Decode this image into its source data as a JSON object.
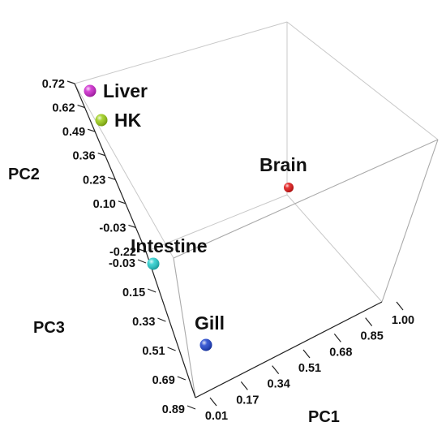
{
  "chart_data": {
    "type": "scatter",
    "projection": "3d",
    "title": "",
    "axes": {
      "x": {
        "label": "PC1",
        "ticks": [
          "0.01",
          "0.17",
          "0.34",
          "0.51",
          "0.68",
          "0.85",
          "1.00"
        ],
        "range": [
          0.01,
          1.0
        ]
      },
      "y": {
        "label": "PC2",
        "ticks": [
          "0.72",
          "0.62",
          "0.49",
          "0.36",
          "0.23",
          "0.10",
          "-0.03",
          "-0.22"
        ],
        "range": [
          -0.22,
          0.72
        ]
      },
      "z": {
        "label": "PC3",
        "ticks": [
          "-0.03",
          "0.15",
          "0.33",
          "0.51",
          "0.69",
          "0.89"
        ],
        "range": [
          -0.03,
          0.89
        ]
      }
    },
    "points": [
      {
        "label": "Liver",
        "color": "#cc22cc",
        "x": 0.01,
        "y": 0.72,
        "z": -0.03
      },
      {
        "label": "HK",
        "color": "#99cc11",
        "x": 0.01,
        "y": 0.62,
        "z": -0.03
      },
      {
        "label": "Brain",
        "color": "#e01010",
        "x": 1.0,
        "y": 0.64,
        "z": 0.89
      },
      {
        "label": "Intestine",
        "color": "#22cccc",
        "x": 0.01,
        "y": -0.22,
        "z": 0.22
      },
      {
        "label": "Gill",
        "color": "#1a3fcc",
        "x": 0.01,
        "y": -0.22,
        "z": 0.66
      }
    ]
  }
}
